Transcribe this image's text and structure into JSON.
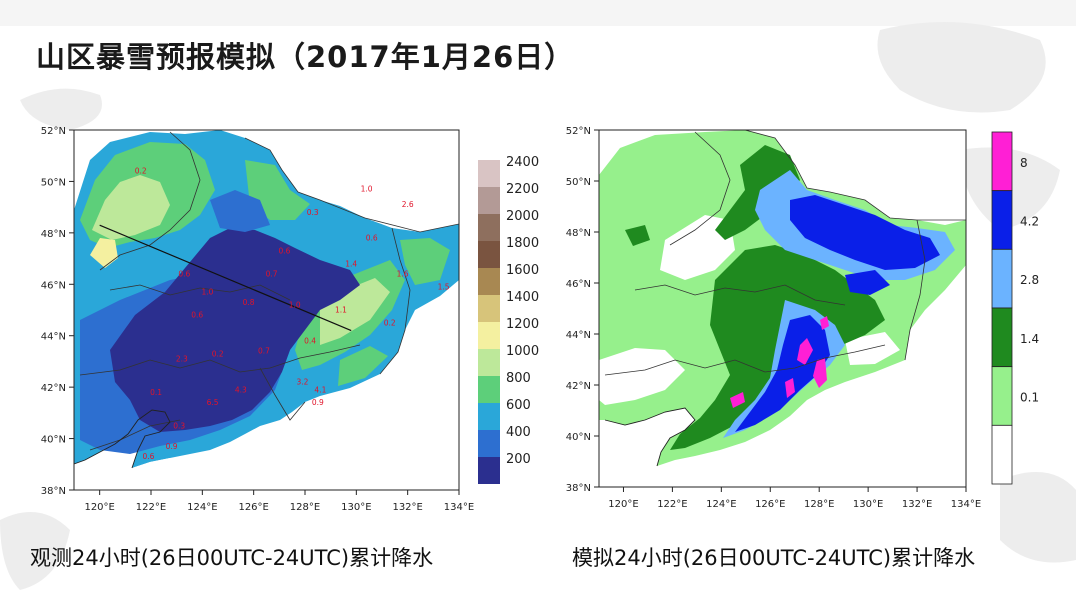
{
  "slide": {
    "title": "山区暴雪预报模拟（2017年1月26日）"
  },
  "chart_data": [
    {
      "type": "heatmap",
      "caption": "观测24小时(26日00UTC-24UTC)累计降水",
      "x_ticks": [
        "120°E",
        "122°E",
        "124°E",
        "126°E",
        "128°E",
        "130°E",
        "132°E",
        "134°E"
      ],
      "y_ticks": [
        "52°N",
        "50°N",
        "48°N",
        "46°N",
        "44°N",
        "42°N",
        "40°N",
        "38°N"
      ],
      "xlim": [
        119,
        134
      ],
      "ylim": [
        38,
        52
      ],
      "colorbar": {
        "levels": [
          "2400",
          "2200",
          "2000",
          "1800",
          "1600",
          "1400",
          "1200",
          "1000",
          "800",
          "600",
          "400",
          "200"
        ],
        "colors": [
          "#d9c4c4",
          "#b39a96",
          "#8e6f5e",
          "#7a5440",
          "#a88852",
          "#d7c47a",
          "#f4f0a0",
          "#bde89a",
          "#5dcf7a",
          "#2aa7d9",
          "#2d6fd0",
          "#2b2f8f"
        ]
      },
      "station_values": [
        {
          "lon": 121.6,
          "lat": 50.3,
          "v": "0.2"
        },
        {
          "lon": 130.4,
          "lat": 49.6,
          "v": "1.0"
        },
        {
          "lon": 132.0,
          "lat": 49.0,
          "v": "2.6"
        },
        {
          "lon": 128.3,
          "lat": 48.7,
          "v": "0.3"
        },
        {
          "lon": 127.2,
          "lat": 47.2,
          "v": "0.6"
        },
        {
          "lon": 130.6,
          "lat": 47.7,
          "v": "0.6"
        },
        {
          "lon": 129.8,
          "lat": 46.7,
          "v": "1.4"
        },
        {
          "lon": 131.8,
          "lat": 46.3,
          "v": "1.6"
        },
        {
          "lon": 133.4,
          "lat": 45.8,
          "v": "1.5"
        },
        {
          "lon": 126.7,
          "lat": 46.3,
          "v": "0.7"
        },
        {
          "lon": 125.8,
          "lat": 45.2,
          "v": "0.8"
        },
        {
          "lon": 124.2,
          "lat": 45.6,
          "v": "1.0"
        },
        {
          "lon": 123.3,
          "lat": 46.3,
          "v": "0.6"
        },
        {
          "lon": 123.8,
          "lat": 44.7,
          "v": "0.6"
        },
        {
          "lon": 127.6,
          "lat": 45.1,
          "v": "1.0"
        },
        {
          "lon": 129.4,
          "lat": 44.9,
          "v": "1.1"
        },
        {
          "lon": 131.3,
          "lat": 44.4,
          "v": "0.2"
        },
        {
          "lon": 128.2,
          "lat": 43.7,
          "v": "0.4"
        },
        {
          "lon": 126.4,
          "lat": 43.3,
          "v": "0.7"
        },
        {
          "lon": 124.6,
          "lat": 43.2,
          "v": "0.2"
        },
        {
          "lon": 123.2,
          "lat": 43.0,
          "v": "2.3"
        },
        {
          "lon": 127.9,
          "lat": 42.1,
          "v": "3.2"
        },
        {
          "lon": 128.6,
          "lat": 41.8,
          "v": "4.1"
        },
        {
          "lon": 128.5,
          "lat": 41.3,
          "v": "0.9"
        },
        {
          "lon": 125.5,
          "lat": 41.8,
          "v": "4.3"
        },
        {
          "lon": 124.4,
          "lat": 41.3,
          "v": "6.5"
        },
        {
          "lon": 122.2,
          "lat": 41.7,
          "v": "0.1"
        },
        {
          "lon": 123.1,
          "lat": 40.4,
          "v": "0.3"
        },
        {
          "lon": 122.8,
          "lat": 39.6,
          "v": "0.9"
        },
        {
          "lon": 121.9,
          "lat": 39.2,
          "v": "0.6"
        }
      ],
      "transect": {
        "from": [
          120.0,
          48.3
        ],
        "to": [
          129.8,
          44.2
        ]
      }
    },
    {
      "type": "heatmap",
      "caption": "模拟24小时(26日00UTC-24UTC)累计降水",
      "x_ticks": [
        "120°E",
        "122°E",
        "124°E",
        "126°E",
        "128°E",
        "130°E",
        "132°E",
        "134°E"
      ],
      "y_ticks": [
        "52°N",
        "50°N",
        "48°N",
        "46°N",
        "44°N",
        "42°N",
        "40°N",
        "38°N"
      ],
      "xlim": [
        119,
        134
      ],
      "ylim": [
        38,
        52
      ],
      "colorbar": {
        "levels": [
          "8",
          "4.2",
          "2.8",
          "1.4",
          "0.1"
        ],
        "colors": [
          "#ff1fd5",
          "#0a1fe8",
          "#6bb3ff",
          "#1f8a1f",
          "#96f08c",
          "#ffffff"
        ]
      }
    }
  ]
}
